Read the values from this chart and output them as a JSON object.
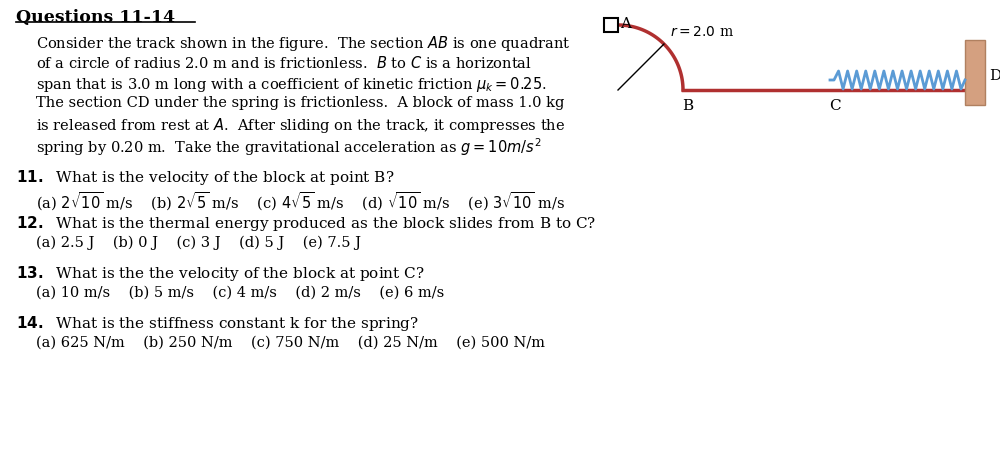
{
  "title": "Questions 11-14",
  "bg_color": "#ffffff",
  "track_color": "#b03030",
  "spring_color": "#5b9bd5",
  "wall_color": "#d4a080",
  "wall_edge_color": "#b08060",
  "para_lines": [
    "Consider the track shown in the figure.  The section $AB$ is one quadrant",
    "of a circle of radius 2.0 m and is frictionless.  $B$ to $C$ is a horizontal",
    "span that is 3.0 m long with a coefficient of kinetic friction $\\mu_k = 0.25$.",
    "The section CD under the spring is frictionless.  A block of mass 1.0 kg",
    "is released from rest at $A$.  After sliding on the track, it compresses the",
    "spring by 0.20 m.  Take the gravitational acceleration as $g = 10m/s^2$"
  ],
  "q11_stem": "11.  What is the velocity of the block at point B?",
  "q11_choices": [
    "(a) $2\\sqrt{10}$ m/s",
    "(b) $2\\sqrt{5}$ m/s",
    "(c) $4\\sqrt{5}$ m/s",
    "(d) $\\sqrt{10}$ m/s",
    "(e) $3\\sqrt{10}$ m/s"
  ],
  "q12_stem": "12.  What is the thermal energy produced as the block slides from B to C?",
  "q12_choices": [
    "(a) 2.5 J",
    "(b) 0 J",
    "(c) 3 J",
    "(d) 5 J",
    "(e) 7.5 J"
  ],
  "q13_stem": "13.  What is the the velocity of the block at point C?",
  "q13_choices": [
    "(a) 10 m/s",
    "(b) 5 m/s",
    "(c) 4 m/s",
    "(d) 2 m/s",
    "(e) 6 m/s"
  ],
  "q14_stem": "14.  What is the stiffness constant k for the spring?",
  "q14_choices": [
    "(a) 625 N/m",
    "(b) 250 N/m",
    "(c) 750 N/m",
    "(d) 25 N/m",
    "(e) 500 N/m"
  ],
  "r_label": "$r = 2.0$ m"
}
